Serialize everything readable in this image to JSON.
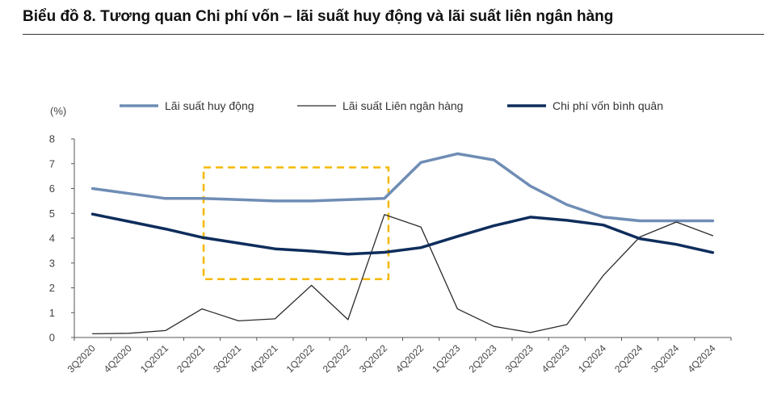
{
  "title": "Biểu đồ 8. Tương quan Chi phí vốn – lãi suất huy động và lãi suất liên ngân hàng",
  "chart_data": {
    "type": "line",
    "ylabel": "(%)",
    "ylim": [
      0,
      8
    ],
    "yticks": [
      "0",
      "1",
      "2",
      "3",
      "4",
      "5",
      "6",
      "7",
      "8"
    ],
    "categories": [
      "3Q2020",
      "4Q2020",
      "1Q2021",
      "2Q2021",
      "3Q2021",
      "4Q2021",
      "1Q2022",
      "2Q2022",
      "3Q2022",
      "4Q2022",
      "1Q2023",
      "2Q2023",
      "3Q2023",
      "4Q2023",
      "1Q2024",
      "2Q2024",
      "3Q2024",
      "4Q2024"
    ],
    "legend_position": "top",
    "series": [
      {
        "name": "Lãi suất huy động",
        "color": "#6f8db5",
        "width": 3.5,
        "values": [
          6.0,
          5.8,
          5.6,
          5.6,
          5.55,
          5.5,
          5.5,
          5.55,
          5.6,
          7.05,
          7.4,
          7.15,
          6.1,
          5.35,
          4.85,
          4.7,
          4.7,
          4.7
        ]
      },
      {
        "name": "Lãi suất Liên ngân hàng",
        "color": "#2b2b2b",
        "width": 1.3,
        "values": [
          0.15,
          0.17,
          0.28,
          1.15,
          0.67,
          0.75,
          2.1,
          0.72,
          4.95,
          4.45,
          1.15,
          0.45,
          0.2,
          0.52,
          2.5,
          4.05,
          4.65,
          4.1
        ]
      },
      {
        "name": "Chi phí vốn bình quân",
        "color": "#0e2d5c",
        "width": 3.5,
        "values": [
          4.97,
          4.67,
          4.37,
          4.03,
          3.8,
          3.57,
          3.48,
          3.36,
          3.43,
          3.62,
          4.07,
          4.5,
          4.85,
          4.72,
          4.53,
          3.98,
          3.75,
          3.42
        ]
      }
    ],
    "annotation": {
      "type": "dashed-box",
      "color": "#f5b800",
      "x_from": "2Q2021",
      "x_to": "3Q2022",
      "y_from": 2.35,
      "y_to": 6.85
    }
  }
}
